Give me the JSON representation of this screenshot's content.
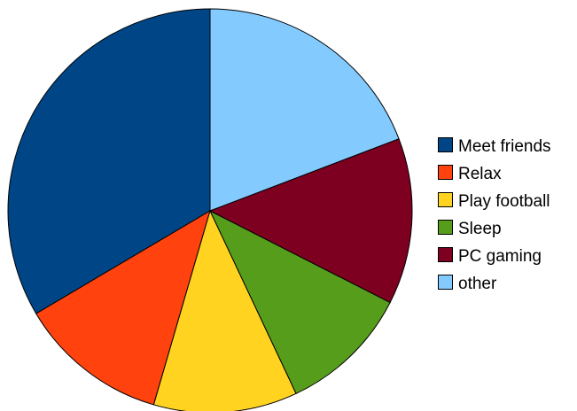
{
  "chart_data": {
    "type": "pie",
    "title": "",
    "categories": [
      "Meet friends",
      "Relax",
      "Play football",
      "Sleep",
      "PC gaming",
      "other"
    ],
    "values": [
      33.5,
      12.0,
      11.5,
      10.5,
      13.3,
      19.2
    ],
    "unit": "percent (estimated)",
    "colors": [
      "#004586",
      "#ff420e",
      "#ffd320",
      "#579d1c",
      "#7e0021",
      "#83caff"
    ],
    "start_angle_deg": 0,
    "direction": "counterclockwise from 12 o'clock",
    "legend_position": "right"
  }
}
